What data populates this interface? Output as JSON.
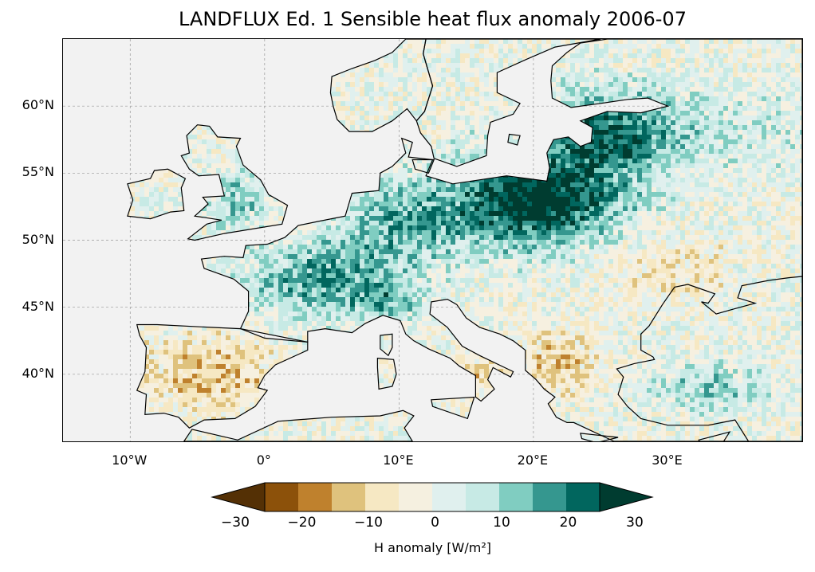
{
  "title": "LANDFLUX Ed. 1 Sensible heat flux anomaly 2006-07",
  "map": {
    "extent": {
      "lon": [
        -15,
        40
      ],
      "lat": [
        35,
        65
      ]
    },
    "lat_ticks": [
      {
        "value": 40,
        "label": "40°N"
      },
      {
        "value": 45,
        "label": "45°N"
      },
      {
        "value": 50,
        "label": "50°N"
      },
      {
        "value": 55,
        "label": "55°N"
      },
      {
        "value": 60,
        "label": "60°N"
      }
    ],
    "lon_ticks": [
      {
        "value": -10,
        "label": "10°W"
      },
      {
        "value": 0,
        "label": "0°"
      },
      {
        "value": 10,
        "label": "10°E"
      },
      {
        "value": 20,
        "label": "20°E"
      },
      {
        "value": 30,
        "label": "30°E"
      }
    ],
    "gridlines": true,
    "ocean_color": "#f2f2f2"
  },
  "colorbar": {
    "label": "H anomaly [W/m²]",
    "min": -30,
    "max": 30,
    "extend": "both",
    "tick_labels": [
      "−30",
      "−20",
      "−10",
      "0",
      "10",
      "20",
      "30"
    ],
    "colors": [
      "#543005",
      "#8c510a",
      "#bf812d",
      "#dfc27d",
      "#f6e8c3",
      "#f5f5f5",
      "#c7eae5",
      "#80cdc1",
      "#35978f",
      "#01665e",
      "#003c30",
      "#00291f",
      "#4a2a05",
      "#003c30"
    ]
  }
}
